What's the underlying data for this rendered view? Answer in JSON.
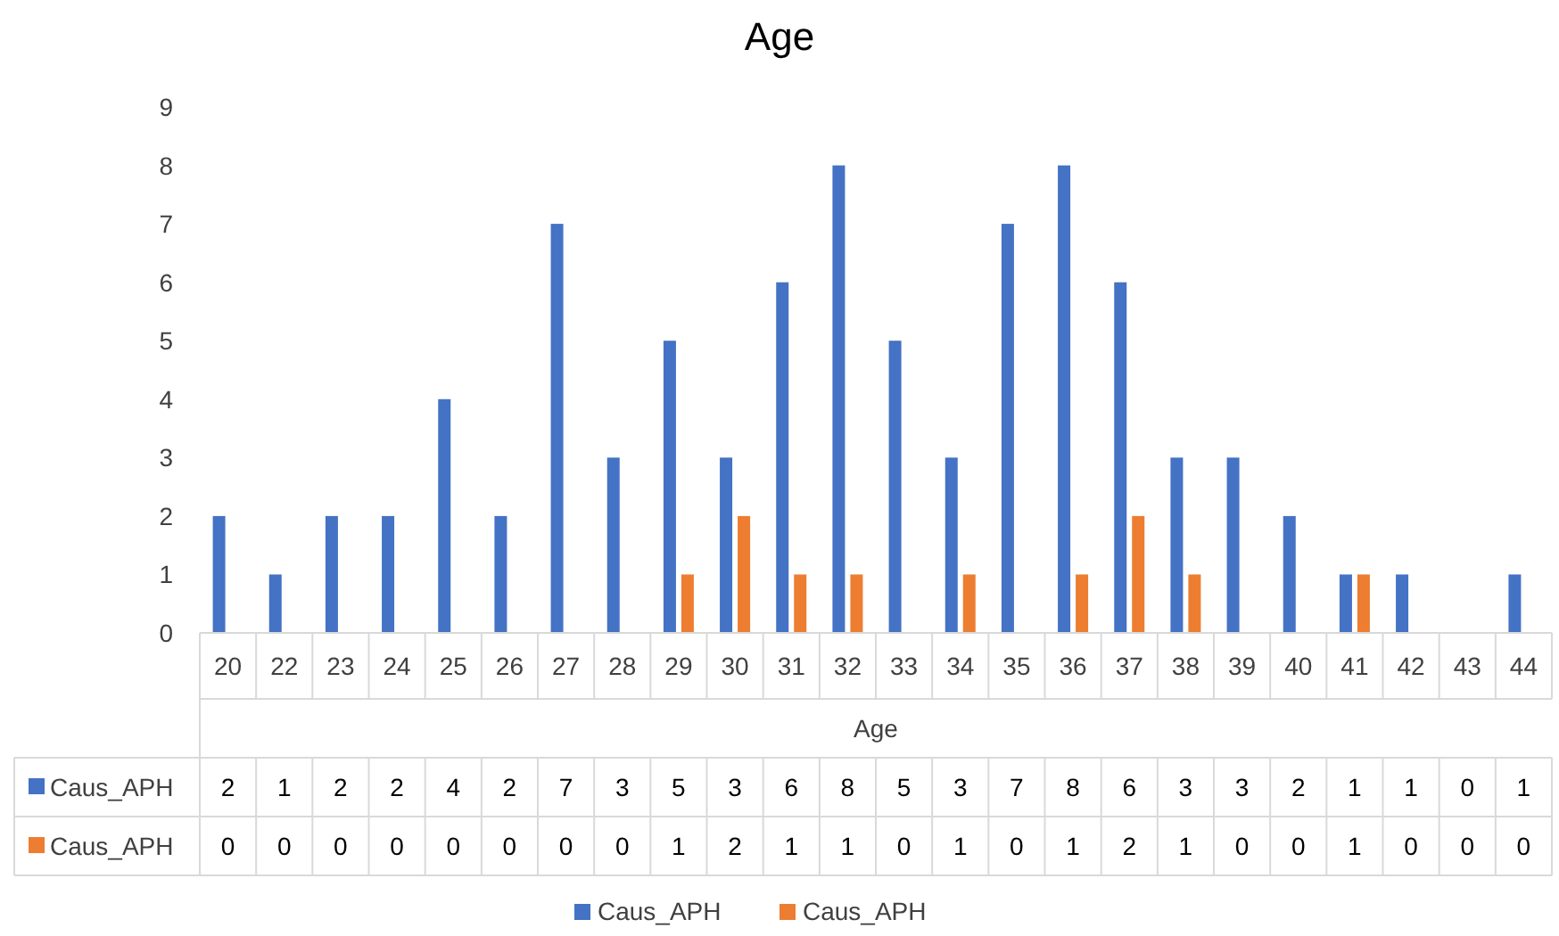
{
  "chart_data": {
    "type": "bar",
    "title": "Age",
    "xlabel": "Age",
    "categories": [
      "20",
      "22",
      "23",
      "24",
      "25",
      "26",
      "27",
      "28",
      "29",
      "30",
      "31",
      "32",
      "33",
      "34",
      "35",
      "36",
      "37",
      "38",
      "39",
      "40",
      "41",
      "42",
      "43",
      "44"
    ],
    "series": [
      {
        "name": "Caus_APH",
        "color": "#4472c4",
        "values": [
          2,
          1,
          2,
          2,
          4,
          2,
          7,
          3,
          5,
          3,
          6,
          8,
          5,
          3,
          7,
          8,
          6,
          3,
          3,
          2,
          1,
          1,
          0,
          1
        ]
      },
      {
        "name": "Caus_APH",
        "color": "#ed7d31",
        "values": [
          0,
          0,
          0,
          0,
          0,
          0,
          0,
          0,
          1,
          2,
          1,
          1,
          0,
          1,
          0,
          1,
          2,
          1,
          0,
          0,
          1,
          0,
          0,
          0
        ]
      }
    ],
    "ylim": [
      0,
      9
    ],
    "yticks": [
      0,
      1,
      2,
      3,
      4,
      5,
      6,
      7,
      8,
      9
    ],
    "grid": false,
    "legend": "bottom",
    "data_labels": true
  }
}
